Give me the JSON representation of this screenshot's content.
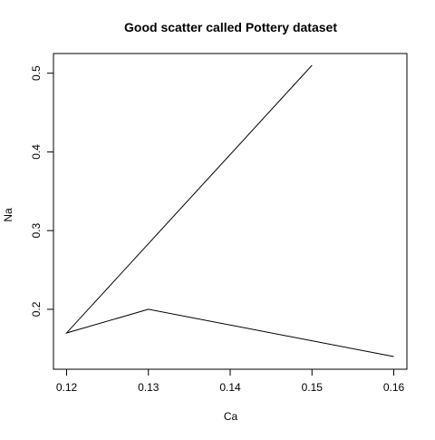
{
  "chart_data": {
    "type": "line",
    "title": "Good scatter called Pottery dataset",
    "xlabel": "Ca",
    "ylabel": "Na",
    "xlim": [
      0.12,
      0.16
    ],
    "ylim": [
      0.14,
      0.51
    ],
    "x_ticks": [
      0.12,
      0.13,
      0.14,
      0.15,
      0.16
    ],
    "y_ticks": [
      0.2,
      0.3,
      0.4,
      0.5
    ],
    "x_tick_labels": [
      "0.12",
      "0.13",
      "0.14",
      "0.15",
      "0.16"
    ],
    "y_tick_labels": [
      "0.2",
      "0.3",
      "0.4",
      "0.5"
    ],
    "grid": false,
    "legend": "none",
    "series": [
      {
        "x": [
          0.15,
          0.12,
          0.13,
          0.16
        ],
        "y": [
          0.51,
          0.17,
          0.2,
          0.14
        ],
        "color": "#000000"
      }
    ]
  }
}
